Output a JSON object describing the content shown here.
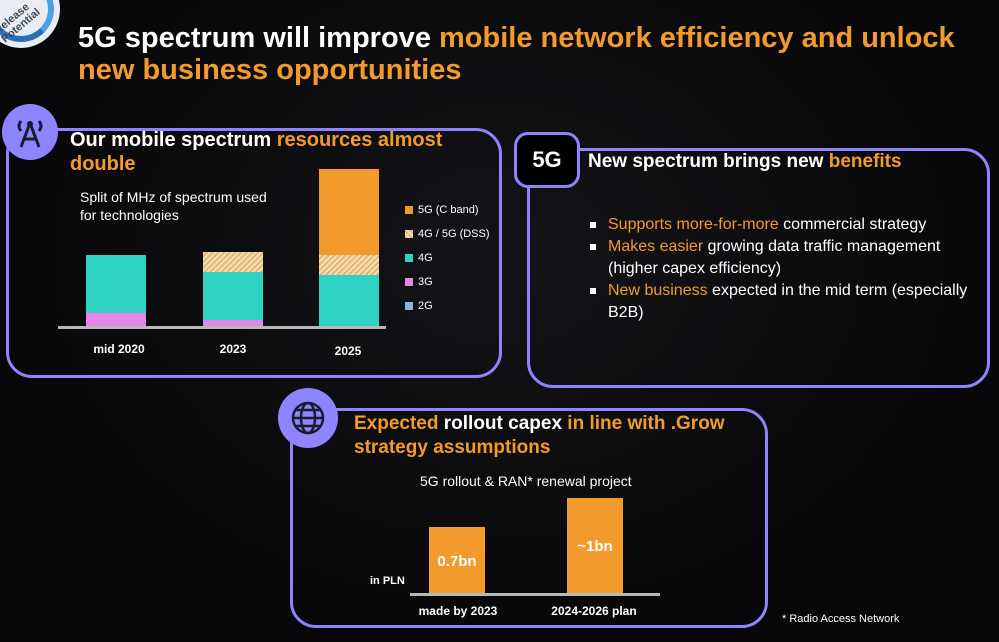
{
  "badge": {
    "text": "Release Potential"
  },
  "title": {
    "part1": "5G spectrum will improve ",
    "part2": "mobile network efficiency and unlock new business opportunities"
  },
  "panel1": {
    "title_white": "Our mobile spectrum ",
    "title_orange": "resources almost double",
    "subtitle": "Split of MHz of spectrum used for technologies",
    "icon": "antenna-tower-icon"
  },
  "chart_data": [
    {
      "type": "bar",
      "stacked": true,
      "categories": [
        "mid 2020",
        "2023",
        "2025"
      ],
      "series": [
        {
          "name": "5G (C band)",
          "color": "#f39a2c",
          "values": [
            0,
            0,
            86
          ]
        },
        {
          "name": "4G / 5G (DSS)",
          "color": "#e8c48e",
          "values": [
            0,
            20,
            20
          ]
        },
        {
          "name": "4G",
          "color": "#2fd3c4",
          "values": [
            58,
            48,
            52
          ]
        },
        {
          "name": "3G",
          "color": "#e585e8",
          "values": [
            14,
            7,
            0
          ]
        },
        {
          "name": "2G",
          "color": "#8fb0d8",
          "values": [
            0,
            0,
            0
          ]
        }
      ]
    },
    {
      "type": "bar",
      "title": "5G rollout & RAN* renewal project",
      "ylabel": "in PLN",
      "categories": [
        "made by 2023",
        "2024-2026 plan"
      ],
      "values": [
        0.7,
        1.0
      ],
      "labels": [
        "0.7bn",
        "~1bn"
      ]
    }
  ],
  "panel2": {
    "badge": "5G",
    "title_white": "New spectrum brings new ",
    "title_orange": "benefits",
    "bullets": [
      {
        "orange": "Supports more-for-more ",
        "white": "commercial strategy"
      },
      {
        "orange": "Makes easier ",
        "white": "growing data traffic management (higher capex efficiency)"
      },
      {
        "orange": "New business ",
        "white": " expected in the mid term (especially B2B)"
      }
    ]
  },
  "panel3": {
    "title_orange1": "Expected ",
    "title_white": "rollout capex ",
    "title_orange2": "in line with .Grow strategy assumptions",
    "icon": "globe-icon"
  },
  "footnote": "* Radio Access Network"
}
